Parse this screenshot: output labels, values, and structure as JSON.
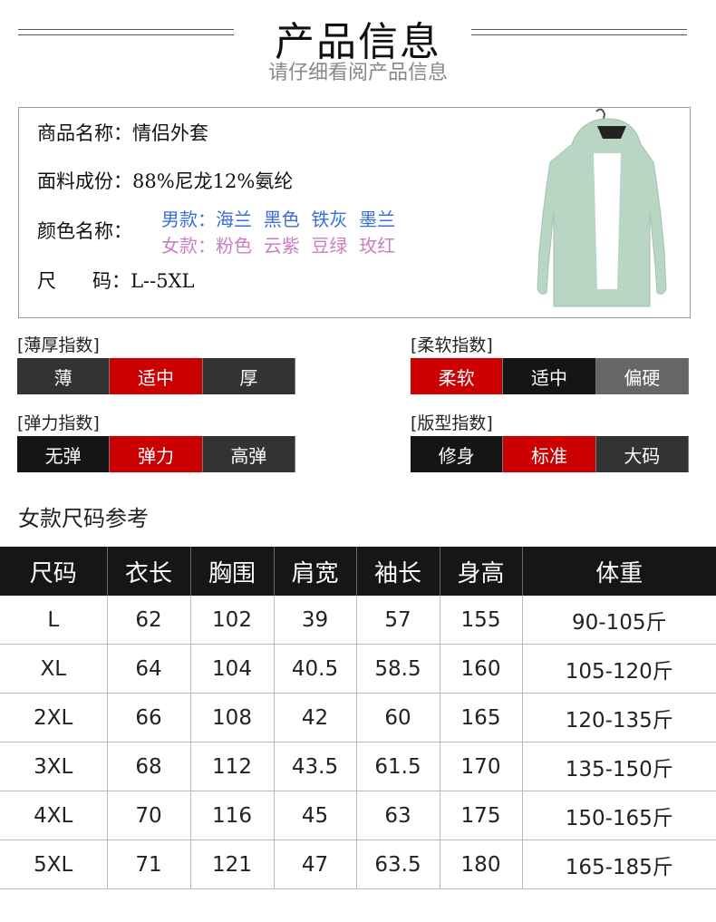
{
  "header": {
    "title": "产品信息",
    "subtitle": "请仔细看阅产品信息"
  },
  "info": {
    "name_label": "商品名称：",
    "name_value": "情侣外套",
    "fabric_label": "面料成份：",
    "fabric_value": "88%尼龙12%氨纶",
    "color_label": "颜色名称：",
    "men_colors": "男款：海兰  黑色  铁灰  墨兰",
    "women_colors": "女款：粉色  云紫  豆绿  玫红",
    "size_label": "尺      码：",
    "size_value": "L--5XL",
    "men_color": "#3a6fd8",
    "women_color": "#c97fc4"
  },
  "indices": [
    {
      "label": "[薄厚指数]",
      "options": [
        "薄",
        "适中",
        "厚"
      ],
      "selected": 1,
      "colors": [
        "#333333",
        "#cc0000",
        "#333333"
      ]
    },
    {
      "label": "[柔软指数]",
      "options": [
        "柔软",
        "适中",
        "偏硬"
      ],
      "selected": 0,
      "colors": [
        "#cc0000",
        "#151515",
        "#666666"
      ]
    },
    {
      "label": "[弹力指数]",
      "options": [
        "无弹",
        "弹力",
        "高弹"
      ],
      "selected": 1,
      "colors": [
        "#151515",
        "#cc0000",
        "#333333"
      ]
    },
    {
      "label": "[版型指数]",
      "options": [
        "修身",
        "标准",
        "大码"
      ],
      "selected": 1,
      "colors": [
        "#151515",
        "#cc0000",
        "#333333"
      ]
    }
  ],
  "size_table": {
    "title": "女款尺码参考",
    "headers": [
      "尺码",
      "衣长",
      "胸围",
      "肩宽",
      "袖长",
      "身高",
      "体重"
    ],
    "rows": [
      [
        "L",
        "62",
        "102",
        "39",
        "57",
        "155",
        "90-105斤"
      ],
      [
        "XL",
        "64",
        "104",
        "40.5",
        "58.5",
        "160",
        "105-120斤"
      ],
      [
        "2XL",
        "66",
        "108",
        "42",
        "60",
        "165",
        "120-135斤"
      ],
      [
        "3XL",
        "68",
        "112",
        "43.5",
        "61.5",
        "170",
        "135-150斤"
      ],
      [
        "4XL",
        "70",
        "116",
        "45",
        "63",
        "175",
        "150-165斤"
      ],
      [
        "5XL",
        "71",
        "121",
        "47",
        "63.5",
        "180",
        "165-185斤"
      ]
    ]
  }
}
